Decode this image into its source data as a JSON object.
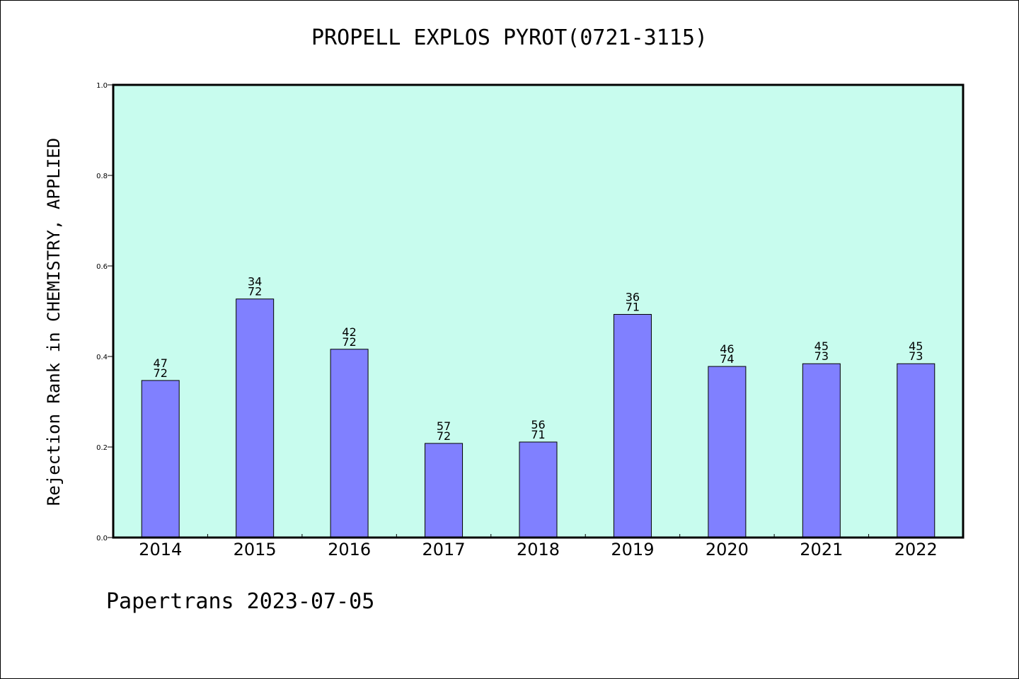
{
  "chart_data": {
    "type": "bar",
    "title": "PROPELL EXPLOS PYROT(0721-3115)",
    "xlabel": "",
    "ylabel": "Rejection Rank in CHEMISTRY, APPLIED",
    "ylim": [
      0,
      1.0
    ],
    "yticks": [
      "0.0",
      "0.2",
      "0.4",
      "0.6",
      "0.8",
      "1.0"
    ],
    "categories": [
      "2014",
      "2015",
      "2016",
      "2017",
      "2018",
      "2019",
      "2020",
      "2021",
      "2022"
    ],
    "values": [
      0.347,
      0.527,
      0.416,
      0.208,
      0.211,
      0.493,
      0.378,
      0.384,
      0.384
    ],
    "annotations": [
      {
        "top": "47",
        "bottom": "72"
      },
      {
        "top": "34",
        "bottom": "72"
      },
      {
        "top": "42",
        "bottom": "72"
      },
      {
        "top": "57",
        "bottom": "72"
      },
      {
        "top": "56",
        "bottom": "71"
      },
      {
        "top": "36",
        "bottom": "71"
      },
      {
        "top": "46",
        "bottom": "74"
      },
      {
        "top": "45",
        "bottom": "73"
      },
      {
        "top": "45",
        "bottom": "73"
      }
    ],
    "grid": false,
    "colors": {
      "plot_background": "#c8fcee",
      "bar": "#8080ff",
      "bar_edge": "#000000"
    }
  },
  "footer": "Papertrans 2023-07-05"
}
